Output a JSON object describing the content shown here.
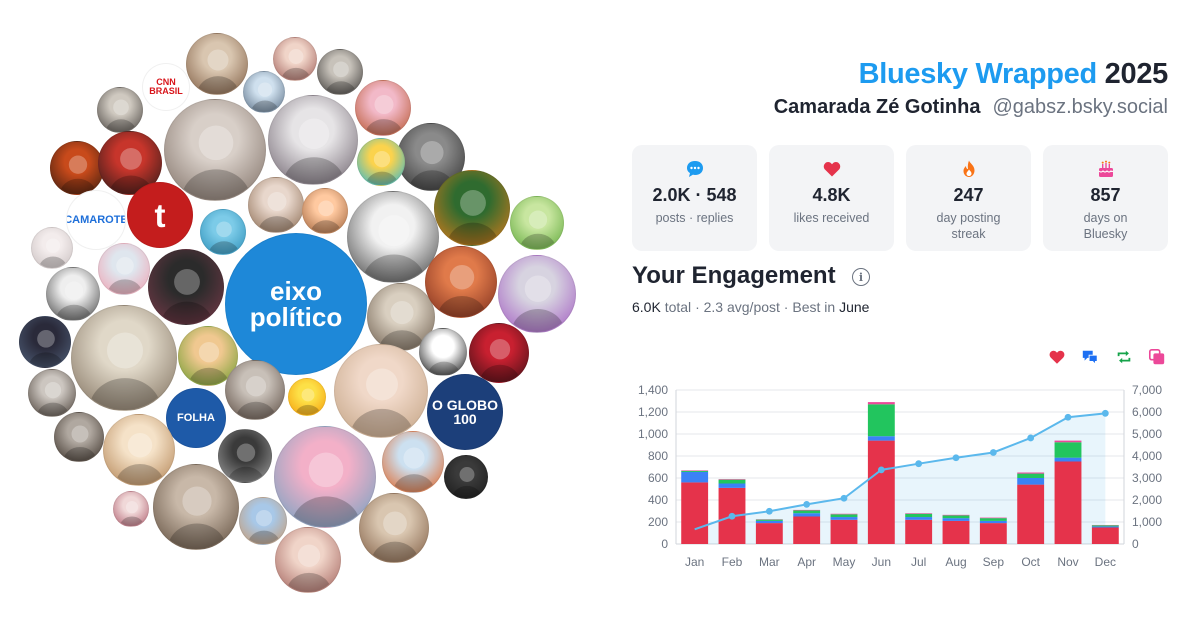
{
  "header": {
    "brand": "Bluesky Wrapped",
    "year": "2025",
    "display_name": "Camarada Zé Gotinha",
    "handle": "@gabsz.bsky.social"
  },
  "stats": [
    {
      "icon": "chat-bubble-icon",
      "value": "2.0K · 548",
      "label": "posts · replies",
      "color": "#1d9bf0"
    },
    {
      "icon": "heart-icon",
      "value": "4.8K",
      "label": "likes received",
      "color": "#e5334b"
    },
    {
      "icon": "flame-icon",
      "value": "247",
      "label": "day posting streak",
      "color": "#f97316"
    },
    {
      "icon": "cake-icon",
      "value": "857",
      "label": "days on Bluesky",
      "color": "#ec4899"
    }
  ],
  "engagement": {
    "title": "Your Engagement",
    "total": "6.0K",
    "total_label": "total",
    "avg": "2.3 avg/post",
    "best_label": "Best in",
    "best_month": "June"
  },
  "legend": [
    {
      "icon": "heart-icon",
      "color": "#e5334b"
    },
    {
      "icon": "reply-icon",
      "color": "#1d6ff2"
    },
    {
      "icon": "repost-icon",
      "color": "#16a34a"
    },
    {
      "icon": "quote-icon",
      "color": "#ec4899"
    }
  ],
  "chart_data": {
    "type": "bar",
    "stacked": true,
    "categories": [
      "Jan",
      "Feb",
      "Mar",
      "Apr",
      "May",
      "Jun",
      "Jul",
      "Aug",
      "Sep",
      "Oct",
      "Nov",
      "Dec"
    ],
    "series": [
      {
        "color": "#e5334b",
        "values": [
          560,
          510,
          190,
          250,
          220,
          940,
          220,
          210,
          190,
          540,
          750,
          150
        ]
      },
      {
        "color": "#3b82f6",
        "values": [
          95,
          40,
          20,
          30,
          25,
          40,
          25,
          25,
          20,
          60,
          35,
          10
        ]
      },
      {
        "color": "#22c55e",
        "values": [
          10,
          35,
          12,
          25,
          25,
          290,
          30,
          25,
          25,
          40,
          140,
          10
        ]
      },
      {
        "color": "#ec4899",
        "values": [
          5,
          5,
          3,
          5,
          5,
          20,
          5,
          5,
          5,
          10,
          15,
          3
        ]
      }
    ],
    "cumulative": {
      "color": "#5bb8ec",
      "values": [
        670,
        1260,
        1490,
        1800,
        2080,
        3370,
        3650,
        3920,
        4160,
        4820,
        5760,
        5940
      ]
    },
    "ylim_left": [
      0,
      1400
    ],
    "yticks_left": [
      "0",
      "200",
      "400",
      "600",
      "800",
      "1,000",
      "1,200",
      "1,400"
    ],
    "ylim_right": [
      0,
      7000
    ],
    "yticks_right": [
      "0",
      "1,000",
      "2,000",
      "3,000",
      "4,000",
      "5,000",
      "6,000",
      "7,000"
    ],
    "grid": true
  },
  "bubbles": [
    {
      "c1": "#d9c6b0",
      "c2": "#7d5a40"
    },
    {
      "c1": "#f0d4c8",
      "c2": "#a0605a"
    },
    {
      "c1": "#c7c2ba",
      "c2": "#3d3a38"
    },
    {
      "c1": "#cfe0ee",
      "c2": "#5a6f85"
    },
    {
      "c1": "#ffffff",
      "c2": "#d8151b",
      "text": "CNN\nBRASIL"
    },
    {
      "c1": "#cfc9c0",
      "c2": "#4a4541"
    },
    {
      "c1": "#d8cfc8",
      "c2": "#7a6a60"
    },
    {
      "c1": "#e6e4e6",
      "c2": "#6a5f6a"
    },
    {
      "c1": "#f2b9c8",
      "c2": "#b5532c"
    },
    {
      "c1": "#8a8a8a",
      "c2": "#2d2d2d"
    },
    {
      "c1": "#fbd34d",
      "c2": "#2bb6d6"
    },
    {
      "c1": "#c84a1b",
      "c2": "#3a1c0f"
    },
    {
      "c1": "#c7352b",
      "c2": "#2a1a18"
    },
    {
      "c1": "#e8d7cc",
      "c2": "#8a6a50"
    },
    {
      "c1": "#ffffff",
      "c2": "#1e6fd9",
      "text": "CAMAROTE"
    },
    {
      "c1": "#c41d1d",
      "c2": "#c41d1d",
      "text": "t"
    },
    {
      "c1": "#7ccbe8",
      "c2": "#2c8fb8"
    },
    {
      "c1": "#ffc9a0",
      "c2": "#a0643c"
    },
    {
      "c1": "#f1f1f1",
      "c2": "#3c3c3c"
    },
    {
      "c1": "#2f6b2f",
      "c2": "#e07b1a"
    },
    {
      "c1": "#c8e6a0",
      "c2": "#5fa83a"
    },
    {
      "c1": "#f3ecec",
      "c2": "#c9c0c0"
    },
    {
      "c1": "#dfe6ee",
      "c2": "#f0a0b0"
    },
    {
      "c1": "#eeeeee",
      "c2": "#444444"
    },
    {
      "c1": "#2b2b2b",
      "c2": "#7a3a4a"
    },
    {
      "c1": "#1e88d8",
      "c2": "#1e88d8",
      "text": "eixo\npolítico"
    },
    {
      "c1": "#d9cfc0",
      "c2": "#6a5a4a"
    },
    {
      "c1": "#e07a4a",
      "c2": "#7a2c1c"
    },
    {
      "c1": "#d7d3e0",
      "c2": "#a058c0"
    },
    {
      "c1": "#2a2a3a",
      "c2": "#50607a"
    },
    {
      "c1": "#e0d8c8",
      "c2": "#7a6a58"
    },
    {
      "c1": "#f0c890",
      "c2": "#6a9a2a"
    },
    {
      "c1": "#ffffff",
      "c2": "#111111"
    },
    {
      "c1": "#c82030",
      "c2": "#401015"
    },
    {
      "c1": "#ccc6c0",
      "c2": "#4a4038"
    },
    {
      "c1": "#c8c0b8",
      "c2": "#5a4a40"
    },
    {
      "c1": "#fde047",
      "c2": "#f59e0b"
    },
    {
      "c1": "#f0d8c8",
      "c2": "#c0a080"
    },
    {
      "c1": "#1c3f7a",
      "c2": "#1c3f7a",
      "text": "O GLOBO\n100"
    },
    {
      "c1": "#b0a8a0",
      "c2": "#3a3028"
    },
    {
      "c1": "#1e5aa8",
      "c2": "#1e5aa8",
      "text": "FOLHA"
    },
    {
      "c1": "#3a3a3a",
      "c2": "#a0a0a0"
    },
    {
      "c1": "#f5e2c8",
      "c2": "#b08050"
    },
    {
      "c1": "#f3b0c8",
      "c2": "#6aa0c0"
    },
    {
      "c1": "#cce0f0",
      "c2": "#e06020"
    },
    {
      "c1": "#3a3a3a",
      "c2": "#1a1a1a"
    },
    {
      "c1": "#c8b8a8",
      "c2": "#5a4838"
    },
    {
      "c1": "#f0d8d8",
      "c2": "#b06070"
    },
    {
      "c1": "#a8c8e8",
      "c2": "#c89a70"
    }
  ]
}
